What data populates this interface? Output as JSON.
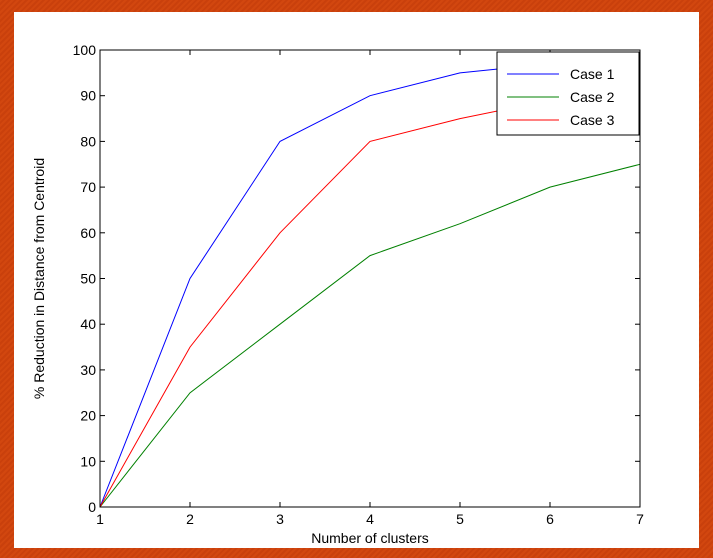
{
  "chart_data": {
    "type": "line",
    "xlabel": "Number of clusters",
    "ylabel": "% Reduction in Distance from Centroid",
    "xlim": [
      1,
      7
    ],
    "ylim": [
      0,
      100
    ],
    "xticks": [
      1,
      2,
      3,
      4,
      5,
      6,
      7
    ],
    "yticks": [
      0,
      10,
      20,
      30,
      40,
      50,
      60,
      70,
      80,
      90,
      100
    ],
    "grid": false,
    "legend_position": "top-right",
    "x": [
      1,
      2,
      3,
      4,
      5,
      6,
      7
    ],
    "series": [
      {
        "name": "Case 1",
        "color": "#0000ff",
        "values": [
          0,
          50,
          80,
          90,
          95,
          97,
          98
        ]
      },
      {
        "name": "Case 2",
        "color": "#008000",
        "values": [
          0,
          25,
          40,
          55,
          62,
          70,
          75
        ]
      },
      {
        "name": "Case 3",
        "color": "#ff0000",
        "values": [
          0,
          35,
          60,
          80,
          85,
          89,
          92
        ]
      }
    ]
  }
}
